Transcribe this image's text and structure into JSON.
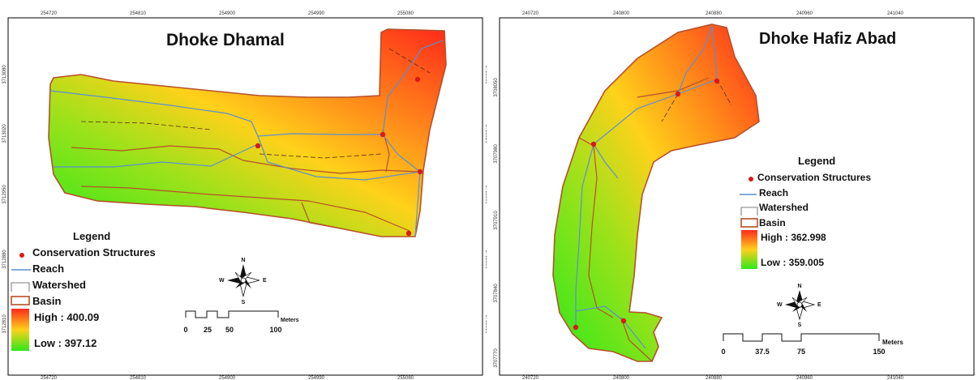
{
  "left": {
    "title": "Dhoke Dhamal",
    "top_ticks": [
      "254720",
      "254810",
      "254900",
      "254990",
      "255080"
    ],
    "bottom_ticks": [
      "254720",
      "254810",
      "254900",
      "254990",
      "255080"
    ],
    "left_ticks": [
      "3713080",
      "3713020",
      "3712950",
      "3712880",
      "3712810"
    ],
    "right_ticks": [
      "3713080",
      "3713020",
      "3712950",
      "3712880",
      "3712810"
    ],
    "legend": {
      "heading": "Legend",
      "conservation": "Conservation Structures",
      "reach": "Reach",
      "watershed": "Watershed",
      "basin": "Basin",
      "high": "High : 400.09",
      "low": "Low : 397.12"
    },
    "compass": {
      "n": "N",
      "s": "S",
      "e": "E",
      "w": "W"
    },
    "scale": {
      "labels": [
        "0",
        "25",
        "50",
        "100"
      ],
      "unit": "Meters"
    }
  },
  "right": {
    "title": "Dhoke Hafiz Abad",
    "top_ticks": [
      "240720",
      "240800",
      "240880",
      "240960",
      "241040"
    ],
    "bottom_ticks": [
      "240720",
      "240800",
      "240880",
      "240960",
      "241040"
    ],
    "left_ticks": [
      "3708050",
      "3707980",
      "3707910",
      "3707840",
      "3707770"
    ],
    "legend": {
      "heading": "Legend",
      "conservation": "Conservation Structures",
      "reach": "Reach",
      "watershed": "Watershed",
      "basin": "Basin",
      "high": "High : 362.998",
      "low": "Low : 359.005"
    },
    "compass": {
      "n": "N",
      "s": "S",
      "e": "E",
      "w": "W"
    },
    "scale": {
      "labels": [
        "0",
        "37.5",
        "75",
        "150"
      ],
      "unit": "Meters"
    }
  },
  "colors": {
    "high": "#ff2a1a",
    "mid": "#ffd11a",
    "low": "#2ee81a",
    "reach": "#5a8fd0",
    "basin": "#b5502a",
    "point": "#d81a1a"
  }
}
